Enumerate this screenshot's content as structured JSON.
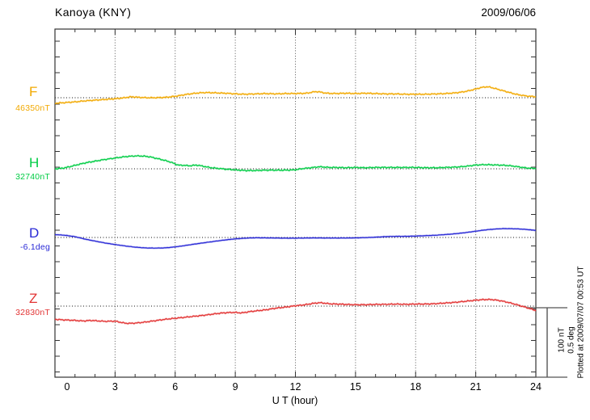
{
  "chart_data": {
    "type": "line",
    "title": "Kanoya (KNY)",
    "date": "2009/06/06",
    "xlabel": "U T (hour)",
    "x_ticks": [
      0,
      3,
      6,
      9,
      12,
      15,
      18,
      21,
      24
    ],
    "xlim": [
      0,
      24
    ],
    "grid": "vertical dotted lines every 3 hours; dotted horizontal baseline per channel",
    "legend_position": "left margin, one colored label per channel",
    "plotted_note": "Plotted at 2009/07/07 00:53 UT",
    "scale_bar": {
      "nT_label": "100 nT",
      "deg_label": "0.5 deg",
      "nT": 100,
      "deg": 0.5
    },
    "axis_color": "#333333",
    "series": [
      {
        "name": "F",
        "baseline_label": "46350nT",
        "baseline_value": 46350,
        "unit": "nT",
        "color": "#F2A900",
        "offsets": [
          [
            0,
            -8
          ],
          [
            0.5,
            -7
          ],
          [
            1,
            -6
          ],
          [
            1.5,
            -4.5
          ],
          [
            2,
            -3.5
          ],
          [
            2.5,
            -2.5
          ],
          [
            3,
            -1.5
          ],
          [
            3.5,
            0
          ],
          [
            3.8,
            1.5
          ],
          [
            4.2,
            0.5
          ],
          [
            4.6,
            0
          ],
          [
            5,
            0
          ],
          [
            5.5,
            0.5
          ],
          [
            6,
            2
          ],
          [
            6.5,
            4.5
          ],
          [
            7,
            6.5
          ],
          [
            7.5,
            7.5
          ],
          [
            8,
            7
          ],
          [
            8.5,
            6.5
          ],
          [
            9,
            5.5
          ],
          [
            9.5,
            5
          ],
          [
            10,
            5.5
          ],
          [
            10.5,
            6
          ],
          [
            11,
            5.5
          ],
          [
            11.5,
            6
          ],
          [
            12,
            6
          ],
          [
            12.6,
            6.5
          ],
          [
            13,
            9
          ],
          [
            13.2,
            8.5
          ],
          [
            13.5,
            6.5
          ],
          [
            14,
            6
          ],
          [
            14.5,
            6.5
          ],
          [
            15,
            6
          ],
          [
            15.5,
            6.5
          ],
          [
            16,
            6
          ],
          [
            16.5,
            5.5
          ],
          [
            17,
            5.5
          ],
          [
            17.5,
            5
          ],
          [
            18,
            5
          ],
          [
            18.5,
            5
          ],
          [
            19,
            5.5
          ],
          [
            19.5,
            6
          ],
          [
            20,
            7
          ],
          [
            20.5,
            9
          ],
          [
            21,
            12.5
          ],
          [
            21.3,
            15
          ],
          [
            21.6,
            16
          ],
          [
            22,
            13
          ],
          [
            22.5,
            9
          ],
          [
            23,
            5
          ],
          [
            23.5,
            2.5
          ],
          [
            24,
            1.5
          ]
        ]
      },
      {
        "name": "H",
        "baseline_label": "32740nT",
        "baseline_value": 32740,
        "unit": "nT",
        "color": "#00CC44",
        "offsets": [
          [
            0,
            0
          ],
          [
            0.3,
            0.5
          ],
          [
            0.6,
            2
          ],
          [
            1,
            5
          ],
          [
            1.5,
            8.5
          ],
          [
            2,
            11
          ],
          [
            2.5,
            13.5
          ],
          [
            3,
            15.5
          ],
          [
            3.5,
            17.5
          ],
          [
            4,
            18.5
          ],
          [
            4.3,
            18.5
          ],
          [
            4.7,
            17.5
          ],
          [
            5,
            15.5
          ],
          [
            5.5,
            12
          ],
          [
            5.8,
            9.5
          ],
          [
            6,
            7
          ],
          [
            6.2,
            4.5
          ],
          [
            6.4,
            5.5
          ],
          [
            6.7,
            4
          ],
          [
            7,
            5.5
          ],
          [
            7.2,
            5
          ],
          [
            7.5,
            3
          ],
          [
            7.8,
            1.5
          ],
          [
            8,
            1
          ],
          [
            8.5,
            -0.5
          ],
          [
            9,
            -1.5
          ],
          [
            9.5,
            -2.5
          ],
          [
            10,
            -2.5
          ],
          [
            10.5,
            -2
          ],
          [
            11,
            -2
          ],
          [
            11.5,
            -2
          ],
          [
            12,
            -1.5
          ],
          [
            12.4,
            0.5
          ],
          [
            12.8,
            1.5
          ],
          [
            13,
            2.5
          ],
          [
            13.3,
            3
          ],
          [
            13.6,
            2
          ],
          [
            14,
            2
          ],
          [
            14.5,
            1.5
          ],
          [
            15,
            2
          ],
          [
            15.5,
            1.5
          ],
          [
            16,
            2
          ],
          [
            16.5,
            2
          ],
          [
            17,
            2
          ],
          [
            17.5,
            2
          ],
          [
            18,
            2
          ],
          [
            18.5,
            1.5
          ],
          [
            19,
            1.5
          ],
          [
            19.5,
            2
          ],
          [
            20,
            2.5
          ],
          [
            20.5,
            3.5
          ],
          [
            21,
            5.5
          ],
          [
            21.5,
            6
          ],
          [
            22,
            5.5
          ],
          [
            22.5,
            5
          ],
          [
            23,
            3.5
          ],
          [
            23.3,
            2
          ],
          [
            23.6,
            1
          ],
          [
            24,
            0.5
          ]
        ]
      },
      {
        "name": "D",
        "baseline_label": "-6.1deg",
        "baseline_value": -6.1,
        "unit": "deg",
        "color": "#2929D6",
        "offsets": [
          [
            0,
            0.021
          ],
          [
            0.5,
            0.016
          ],
          [
            1,
            0.006
          ],
          [
            1.5,
            -0.012
          ],
          [
            2,
            -0.026
          ],
          [
            2.5,
            -0.04
          ],
          [
            3,
            -0.051
          ],
          [
            3.5,
            -0.061
          ],
          [
            4,
            -0.07
          ],
          [
            4.5,
            -0.075
          ],
          [
            5,
            -0.077
          ],
          [
            5.5,
            -0.075
          ],
          [
            6,
            -0.068
          ],
          [
            6.5,
            -0.058
          ],
          [
            7,
            -0.047
          ],
          [
            7.5,
            -0.037
          ],
          [
            8,
            -0.027
          ],
          [
            8.5,
            -0.018
          ],
          [
            9,
            -0.01
          ],
          [
            9.5,
            -0.005
          ],
          [
            10,
            -0.002
          ],
          [
            10.5,
            -0.003
          ],
          [
            11,
            -0.004
          ],
          [
            11.5,
            -0.005
          ],
          [
            12,
            -0.005
          ],
          [
            12.5,
            -0.004
          ],
          [
            13,
            -0.003
          ],
          [
            13.5,
            -0.004
          ],
          [
            14,
            -0.004
          ],
          [
            14.5,
            -0.004
          ],
          [
            15,
            -0.003
          ],
          [
            15.5,
            -0.001
          ],
          [
            16,
            0.002
          ],
          [
            16.5,
            0.006
          ],
          [
            17,
            0.008
          ],
          [
            17.5,
            0.008
          ],
          [
            18,
            0.01
          ],
          [
            18.5,
            0.013
          ],
          [
            19,
            0.016
          ],
          [
            19.5,
            0.021
          ],
          [
            20,
            0.027
          ],
          [
            20.5,
            0.035
          ],
          [
            21,
            0.045
          ],
          [
            21.5,
            0.055
          ],
          [
            22,
            0.061
          ],
          [
            22.4,
            0.064
          ],
          [
            22.8,
            0.063
          ],
          [
            23.2,
            0.061
          ],
          [
            23.6,
            0.057
          ],
          [
            24,
            0.051
          ]
        ]
      },
      {
        "name": "Z",
        "baseline_label": "32830nT",
        "baseline_value": 32830,
        "unit": "nT",
        "color": "#E23333",
        "offsets": [
          [
            0,
            -19
          ],
          [
            0.5,
            -20
          ],
          [
            1,
            -20.5
          ],
          [
            1.4,
            -21.5
          ],
          [
            1.8,
            -20.5
          ],
          [
            2.2,
            -21.5
          ],
          [
            2.6,
            -22
          ],
          [
            3,
            -21.5
          ],
          [
            3.3,
            -23.5
          ],
          [
            3.6,
            -25
          ],
          [
            4,
            -24.5
          ],
          [
            4.5,
            -23
          ],
          [
            5,
            -21
          ],
          [
            5.5,
            -19
          ],
          [
            6,
            -17.5
          ],
          [
            6.5,
            -16
          ],
          [
            7,
            -14.5
          ],
          [
            7.5,
            -13
          ],
          [
            8,
            -11
          ],
          [
            8.5,
            -9.5
          ],
          [
            9,
            -9
          ],
          [
            9.3,
            -10
          ],
          [
            9.7,
            -8
          ],
          [
            10,
            -7
          ],
          [
            10.5,
            -5.5
          ],
          [
            11,
            -3
          ],
          [
            11.5,
            -1.5
          ],
          [
            12,
            0.5
          ],
          [
            12.5,
            2
          ],
          [
            13,
            4.5
          ],
          [
            13.3,
            5
          ],
          [
            13.6,
            3.5
          ],
          [
            14,
            3
          ],
          [
            14.5,
            2.5
          ],
          [
            15,
            2
          ],
          [
            15.5,
            2
          ],
          [
            16,
            2.5
          ],
          [
            16.5,
            2.5
          ],
          [
            17,
            3
          ],
          [
            17.5,
            2.5
          ],
          [
            18,
            3
          ],
          [
            18.5,
            3
          ],
          [
            19,
            3.5
          ],
          [
            19.5,
            4.5
          ],
          [
            20,
            5.5
          ],
          [
            20.5,
            7
          ],
          [
            21,
            8.5
          ],
          [
            21.4,
            9.5
          ],
          [
            21.8,
            9.5
          ],
          [
            22.2,
            8
          ],
          [
            22.6,
            5.5
          ],
          [
            23,
            2.5
          ],
          [
            23.4,
            -1
          ],
          [
            23.7,
            -3.5
          ],
          [
            24,
            -6.5
          ]
        ]
      }
    ]
  }
}
